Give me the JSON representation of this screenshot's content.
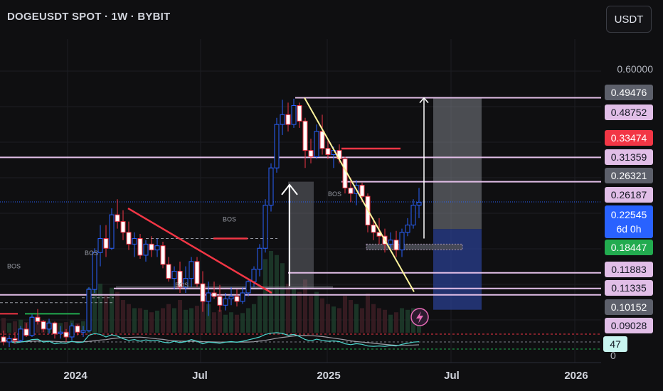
{
  "header": {
    "title": "DOGEUSDT SPOT · 1W · BYBIT"
  },
  "toolbar": {
    "currency": "USDT"
  },
  "price_axis": {
    "ticks": [
      {
        "label": "0.60000",
        "value": 0.6
      }
    ],
    "badges": [
      {
        "label": "0.49476",
        "value": 0.49476,
        "bg": "#5d606b",
        "fg": "#ffffff"
      },
      {
        "label": "0.48752",
        "value": 0.48752,
        "bg": "#e1bee7",
        "fg": "#131722"
      },
      {
        "label": "0.33474",
        "value": 0.33474,
        "bg": "#f23645",
        "fg": "#ffffff"
      },
      {
        "label": "0.31359",
        "value": 0.31359,
        "bg": "#e1bee7",
        "fg": "#131722"
      },
      {
        "label": "0.26321",
        "value": 0.26321,
        "bg": "#5d606b",
        "fg": "#ffffff"
      },
      {
        "label": "0.26187",
        "value": 0.26187,
        "bg": "#e1bee7",
        "fg": "#131722"
      },
      {
        "label": "0.22545",
        "value": 0.22545,
        "bg": "#2962ff",
        "fg": "#ffffff",
        "sub": "6d 0h"
      },
      {
        "label": "0.18447",
        "value": 0.18447,
        "bg": "#22ab4f",
        "fg": "#ffffff"
      },
      {
        "label": "0.11883",
        "value": 0.11883,
        "bg": "#e1bee7",
        "fg": "#131722"
      },
      {
        "label": "0.11335",
        "value": 0.11335,
        "bg": "#e1bee7",
        "fg": "#131722"
      },
      {
        "label": "0.10152",
        "value": 0.10152,
        "bg": "#5d606b",
        "fg": "#ffffff"
      },
      {
        "label": "0.09028",
        "value": 0.09028,
        "bg": "#e1bee7",
        "fg": "#131722"
      }
    ]
  },
  "rsi": {
    "value": "47",
    "zero_label": "0",
    "badge_bg": "#c8f5f0",
    "badge_fg": "#131722"
  },
  "time_axis": {
    "labels": [
      "2024",
      "Jul",
      "2025",
      "Jul",
      "2026"
    ]
  },
  "annotations": {
    "bos": "BOS"
  },
  "colors": {
    "up": "#2962ff",
    "down": "#f23645",
    "level": "#e1bee7",
    "trend_down": "#fff59d",
    "trend_red": "#f23645"
  },
  "chart_data": {
    "type": "candlestick",
    "symbol": "DOGEUSDT",
    "interval": "1W",
    "exchange": "BYBIT",
    "price_levels": [
      0.48752,
      0.31359,
      0.26187,
      0.11883,
      0.11335,
      0.09028
    ],
    "last_price": 0.22545,
    "ohlc_weekly": [
      [
        0.083,
        0.087,
        0.078,
        0.08
      ],
      [
        0.08,
        0.084,
        0.077,
        0.082
      ],
      [
        0.082,
        0.086,
        0.079,
        0.081
      ],
      [
        0.081,
        0.09,
        0.08,
        0.088
      ],
      [
        0.088,
        0.092,
        0.083,
        0.084
      ],
      [
        0.084,
        0.098,
        0.083,
        0.096
      ],
      [
        0.096,
        0.102,
        0.091,
        0.093
      ],
      [
        0.093,
        0.094,
        0.086,
        0.088
      ],
      [
        0.088,
        0.095,
        0.085,
        0.092
      ],
      [
        0.092,
        0.093,
        0.082,
        0.085
      ],
      [
        0.085,
        0.09,
        0.082,
        0.086
      ],
      [
        0.086,
        0.088,
        0.08,
        0.083
      ],
      [
        0.083,
        0.092,
        0.081,
        0.09
      ],
      [
        0.09,
        0.091,
        0.084,
        0.086
      ],
      [
        0.086,
        0.09,
        0.083,
        0.087
      ],
      [
        0.087,
        0.12,
        0.086,
        0.118
      ],
      [
        0.118,
        0.16,
        0.115,
        0.155
      ],
      [
        0.155,
        0.19,
        0.14,
        0.172
      ],
      [
        0.172,
        0.19,
        0.15,
        0.16
      ],
      [
        0.16,
        0.215,
        0.158,
        0.205
      ],
      [
        0.205,
        0.23,
        0.185,
        0.195
      ],
      [
        0.195,
        0.212,
        0.17,
        0.18
      ],
      [
        0.18,
        0.195,
        0.158,
        0.165
      ],
      [
        0.165,
        0.18,
        0.15,
        0.172
      ],
      [
        0.172,
        0.178,
        0.148,
        0.152
      ],
      [
        0.152,
        0.17,
        0.145,
        0.165
      ],
      [
        0.165,
        0.175,
        0.15,
        0.158
      ],
      [
        0.158,
        0.172,
        0.15,
        0.163
      ],
      [
        0.163,
        0.168,
        0.138,
        0.142
      ],
      [
        0.142,
        0.15,
        0.125,
        0.128
      ],
      [
        0.128,
        0.14,
        0.118,
        0.135
      ],
      [
        0.135,
        0.145,
        0.115,
        0.12
      ],
      [
        0.12,
        0.14,
        0.115,
        0.128
      ],
      [
        0.128,
        0.15,
        0.12,
        0.145
      ],
      [
        0.145,
        0.15,
        0.12,
        0.123
      ],
      [
        0.123,
        0.135,
        0.1,
        0.108
      ],
      [
        0.108,
        0.125,
        0.097,
        0.115
      ],
      [
        0.115,
        0.125,
        0.11,
        0.112
      ],
      [
        0.112,
        0.122,
        0.1,
        0.105
      ],
      [
        0.105,
        0.115,
        0.101,
        0.11
      ],
      [
        0.11,
        0.12,
        0.105,
        0.112
      ],
      [
        0.112,
        0.118,
        0.104,
        0.108
      ],
      [
        0.108,
        0.12,
        0.106,
        0.115
      ],
      [
        0.115,
        0.128,
        0.112,
        0.125
      ],
      [
        0.125,
        0.14,
        0.12,
        0.137
      ],
      [
        0.137,
        0.165,
        0.13,
        0.16
      ],
      [
        0.16,
        0.23,
        0.155,
        0.22
      ],
      [
        0.22,
        0.3,
        0.21,
        0.29
      ],
      [
        0.29,
        0.42,
        0.28,
        0.4
      ],
      [
        0.4,
        0.48,
        0.37,
        0.43
      ],
      [
        0.43,
        0.47,
        0.38,
        0.4
      ],
      [
        0.4,
        0.484,
        0.39,
        0.46
      ],
      [
        0.46,
        0.47,
        0.39,
        0.41
      ],
      [
        0.41,
        0.42,
        0.29,
        0.33
      ],
      [
        0.33,
        0.36,
        0.3,
        0.315
      ],
      [
        0.315,
        0.4,
        0.31,
        0.38
      ],
      [
        0.38,
        0.43,
        0.32,
        0.335
      ],
      [
        0.335,
        0.36,
        0.31,
        0.32
      ],
      [
        0.32,
        0.34,
        0.29,
        0.33
      ],
      [
        0.33,
        0.345,
        0.3,
        0.31
      ],
      [
        0.31,
        0.315,
        0.24,
        0.25
      ],
      [
        0.25,
        0.27,
        0.225,
        0.24
      ],
      [
        0.24,
        0.265,
        0.22,
        0.255
      ],
      [
        0.255,
        0.26,
        0.225,
        0.235
      ],
      [
        0.235,
        0.24,
        0.18,
        0.19
      ],
      [
        0.19,
        0.2,
        0.17,
        0.18
      ],
      [
        0.18,
        0.2,
        0.165,
        0.175
      ],
      [
        0.175,
        0.185,
        0.155,
        0.165
      ],
      [
        0.165,
        0.18,
        0.16,
        0.17
      ],
      [
        0.17,
        0.182,
        0.15,
        0.158
      ],
      [
        0.158,
        0.185,
        0.15,
        0.18
      ],
      [
        0.18,
        0.2,
        0.175,
        0.19
      ],
      [
        0.19,
        0.23,
        0.185,
        0.22
      ],
      [
        0.22,
        0.25,
        0.2,
        0.225
      ]
    ],
    "volume_relative": [
      0.18,
      0.12,
      0.14,
      0.16,
      0.13,
      0.2,
      0.22,
      0.15,
      0.14,
      0.13,
      0.12,
      0.13,
      0.15,
      0.12,
      0.14,
      0.55,
      0.75,
      0.6,
      0.45,
      0.55,
      0.5,
      0.4,
      0.35,
      0.3,
      0.3,
      0.28,
      0.25,
      0.27,
      0.3,
      0.35,
      0.3,
      0.4,
      0.28,
      0.3,
      0.33,
      0.45,
      0.35,
      0.25,
      0.28,
      0.22,
      0.25,
      0.22,
      0.24,
      0.3,
      0.35,
      0.45,
      0.9,
      1.0,
      0.95,
      0.85,
      0.6,
      0.55,
      0.5,
      0.65,
      0.45,
      0.5,
      0.42,
      0.35,
      0.32,
      0.3,
      0.45,
      0.4,
      0.35,
      0.3,
      0.48,
      0.35,
      0.3,
      0.28,
      0.22,
      0.25,
      0.3,
      0.28,
      0.3,
      0.15
    ],
    "rsi_last": 47
  }
}
